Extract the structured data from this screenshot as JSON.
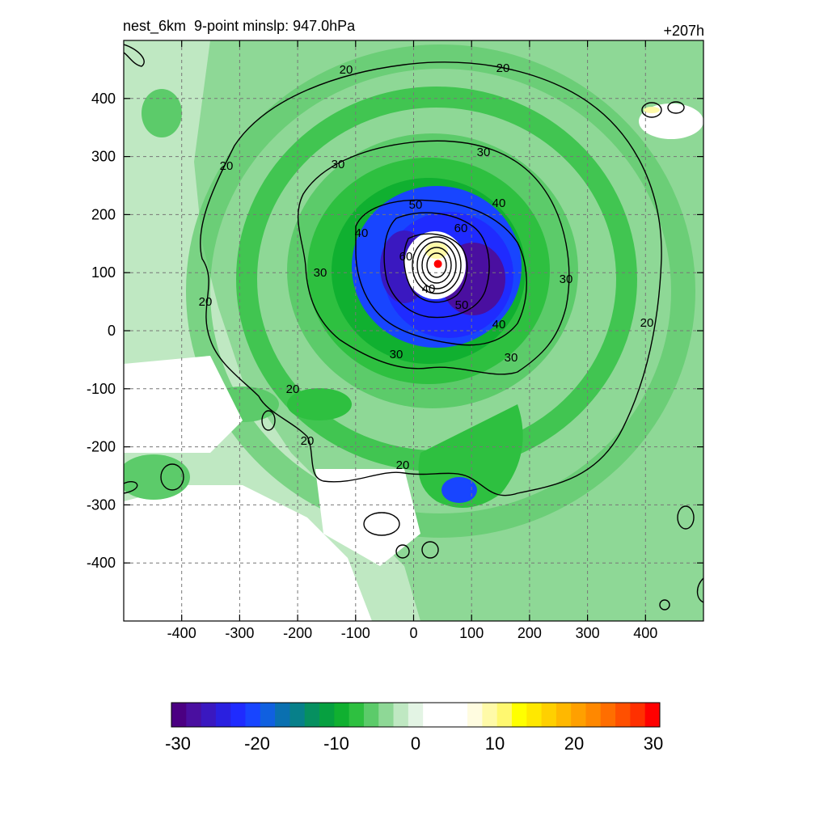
{
  "header": {
    "title_left": "nest_6km  9-point minslp: 947.0hPa",
    "title_right": "+207h"
  },
  "chart_data": {
    "type": "heatmap",
    "title": "nest_6km  9-point minslp: 947.0hPa",
    "lead_time": "+207h",
    "x_range": [
      -500,
      500
    ],
    "y_range": [
      -500,
      500
    ],
    "x_ticks": [
      -400,
      -300,
      -200,
      -100,
      0,
      100,
      200,
      300,
      400
    ],
    "y_ticks": [
      400,
      300,
      200,
      100,
      0,
      -100,
      -200,
      -300,
      -400
    ],
    "grid": "dashed",
    "storm_center": {
      "x": 42,
      "y": 115,
      "color": "#ff0000"
    },
    "contour_levels": [
      20,
      30,
      40,
      50,
      60
    ],
    "contour_label_values": [
      "20",
      "20",
      "20",
      "20",
      "20",
      "20",
      "20",
      "20",
      "30",
      "30",
      "30",
      "30",
      "30",
      "30",
      "40",
      "40",
      "40",
      "50",
      "50",
      "60",
      "60",
      "40"
    ],
    "colorbar": {
      "range": [
        -30,
        30
      ],
      "tick_labels": [
        "-30",
        "-20",
        "-10",
        "0",
        "10",
        "20",
        "30"
      ],
      "colors": [
        "#4b0082",
        "#4a0fa0",
        "#3a18c0",
        "#2a20e0",
        "#1f2bff",
        "#1845ff",
        "#1060e0",
        "#0a70b0",
        "#07808a",
        "#069060",
        "#06a040",
        "#10b030",
        "#2ec040",
        "#5ccb6a",
        "#8ed896",
        "#bfe8c2",
        "#e3f4e4",
        "#ffffff",
        "#ffffff",
        "#ffffff",
        "#fffce0",
        "#fffaa8",
        "#fff870",
        "#ffff00",
        "#ffe800",
        "#ffd000",
        "#ffb800",
        "#ffa000",
        "#ff8800",
        "#ff6e00",
        "#ff5000",
        "#ff3000",
        "#ff0000"
      ]
    }
  }
}
